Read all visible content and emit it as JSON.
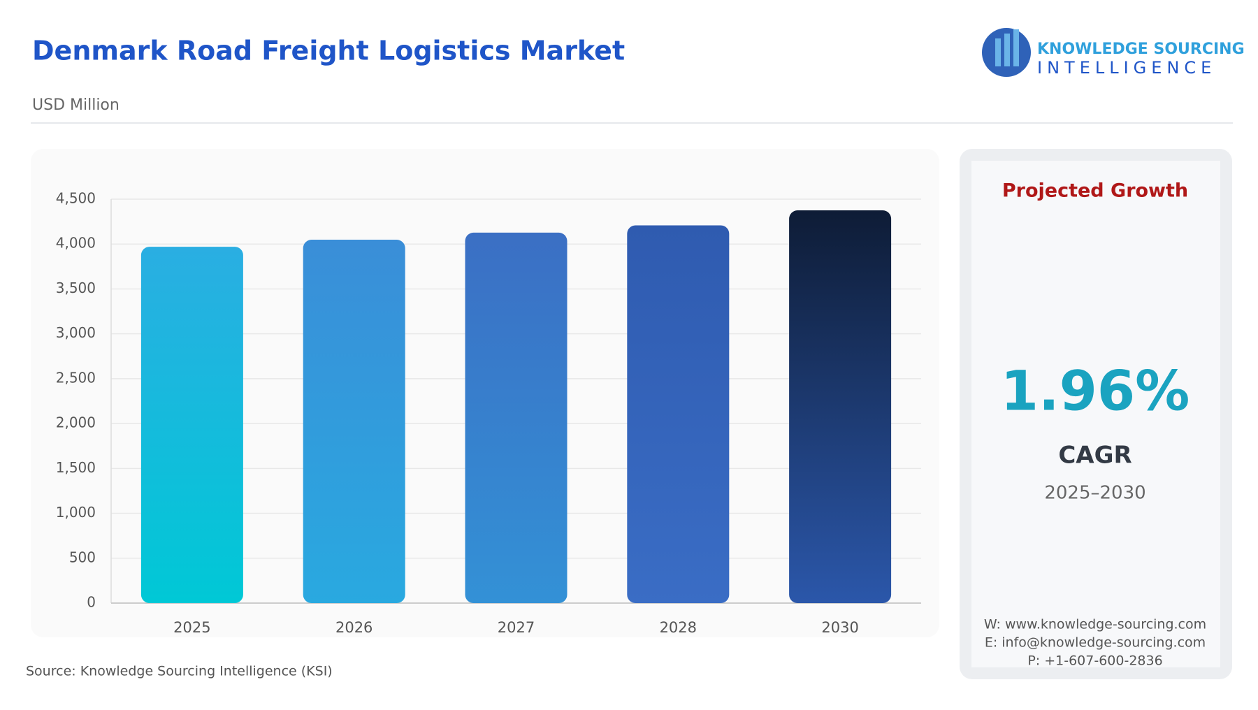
{
  "chart_data": {
    "type": "bar",
    "title": "Denmark Road Freight Logistics Market",
    "subtitle": "USD Million",
    "categories": [
      "2025",
      "2026",
      "2027",
      "2028",
      "2030"
    ],
    "values": [
      3970,
      4048,
      4127,
      4208,
      4375
    ],
    "colors": [
      [
        "#2aaee2",
        "#00c8d6"
      ],
      [
        "#3a8ed8",
        "#29a9e0"
      ],
      [
        "#3b6fc4",
        "#3391d6"
      ],
      [
        "#2f5bb0",
        "#3a6dc5"
      ],
      [
        "#0e1c36",
        "#2b57aa"
      ]
    ],
    "ylim": [
      0,
      4500
    ],
    "yticks": [
      0,
      500,
      {
        "value": 1000,
        "label": "1,000"
      },
      {
        "value": 1500,
        "label": "1,500"
      },
      {
        "value": 2000,
        "label": "2,000"
      },
      {
        "value": 2500,
        "label": "2,500"
      },
      {
        "value": 3000,
        "label": "3,000"
      },
      {
        "value": 3500,
        "label": "3,500"
      },
      {
        "value": 4000,
        "label": "4,000"
      },
      {
        "value": 4500,
        "label": "4,500"
      }
    ],
    "grid": true,
    "source": "Source: Knowledge Sourcing Intelligence (KSI)"
  },
  "logo": {
    "line1": "KNOWLEDGE SOURCING",
    "line2": "INTELLIGENCE"
  },
  "panel": {
    "heading": "Projected Growth",
    "value": "1.96%",
    "label": "CAGR",
    "period": "2025–2030",
    "contacts": [
      "W: www.knowledge-sourcing.com",
      "E: info@knowledge-sourcing.com",
      "P: +1-607-600-2836"
    ]
  }
}
